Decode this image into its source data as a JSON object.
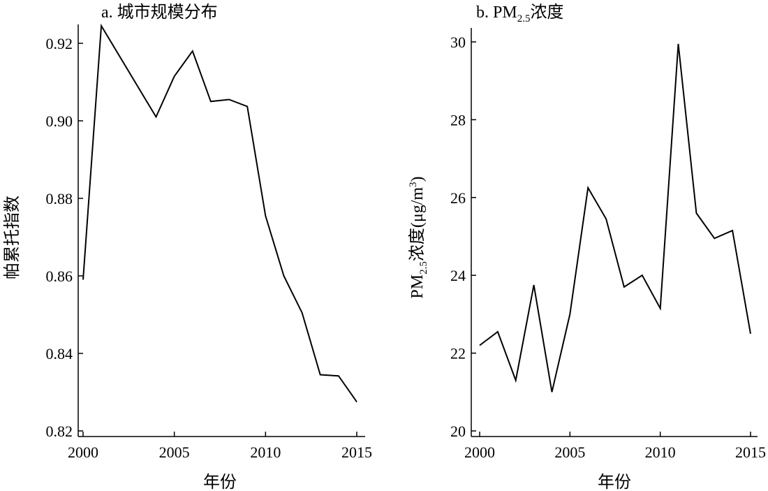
{
  "chart_data": [
    {
      "type": "line",
      "title": "a. 城市规模分布",
      "xlabel": "年份",
      "ylabel": "帕累托指数",
      "xlim": [
        1999.7,
        2015
      ],
      "ylim": [
        0.82,
        0.925
      ],
      "xticks": [
        2000,
        2005,
        2010,
        2015
      ],
      "yticks": [
        0.82,
        0.84,
        0.86,
        0.88,
        0.9,
        0.92
      ],
      "ytick_labels": [
        "0.82",
        "0.84",
        "0.86",
        "0.88",
        "0.90",
        "0.92"
      ],
      "grid": false,
      "series": [
        {
          "x": [
            2000,
            2001,
            2004,
            2005,
            2006,
            2007,
            2008,
            2009,
            2010,
            2011,
            2012,
            2013,
            2014,
            2015
          ],
          "y": [
            0.859,
            0.9245,
            0.901,
            0.9115,
            0.918,
            0.905,
            0.9055,
            0.9037,
            0.8755,
            0.86,
            0.8505,
            0.8345,
            0.8342,
            0.8275
          ]
        }
      ]
    },
    {
      "type": "line",
      "title_main": "b. PM",
      "title_sub": "2.5",
      "title_tail": "浓度",
      "xlabel": "年份",
      "ylabel_main": "PM",
      "ylabel_sub": "2.5",
      "ylabel_tail": "浓度(μg/m",
      "ylabel_sup": "3",
      "ylabel_close": ")",
      "xlim": [
        1999.9,
        2015.2
      ],
      "ylim": [
        20,
        30
      ],
      "xticks": [
        2000,
        2005,
        2010,
        2015
      ],
      "yticks": [
        20,
        22,
        24,
        26,
        28,
        30
      ],
      "ytick_labels": [
        "20",
        "22",
        "24",
        "26",
        "28",
        "30"
      ],
      "grid": false,
      "series": [
        {
          "x": [
            2000,
            2001,
            2002,
            2003,
            2004,
            2005,
            2006,
            2007,
            2008,
            2009,
            2010,
            2011,
            2012,
            2013,
            2014,
            2015
          ],
          "y": [
            22.2,
            22.55,
            21.3,
            23.75,
            21.0,
            23.0,
            26.25,
            25.45,
            23.7,
            24.0,
            23.15,
            29.95,
            25.6,
            24.95,
            25.15,
            22.5
          ]
        }
      ]
    }
  ]
}
